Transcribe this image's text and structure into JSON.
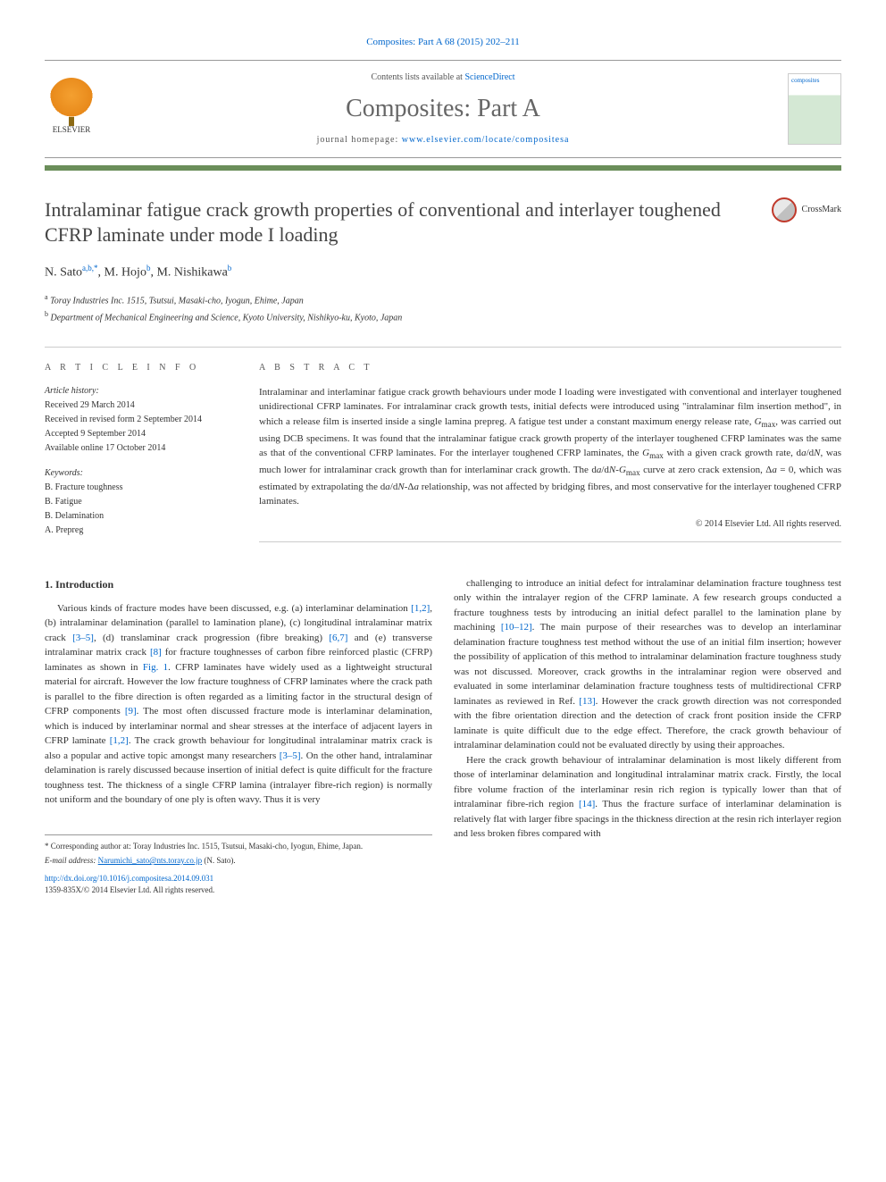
{
  "journal_ref": "Composites: Part A 68 (2015) 202–211",
  "header": {
    "elsevier_label": "ELSEVIER",
    "contents_prefix": "Contents lists available at ",
    "contents_link": "ScienceDirect",
    "journal_title": "Composites: Part A",
    "homepage_prefix": "journal homepage: ",
    "homepage_url": "www.elsevier.com/locate/compositesa",
    "cover_text": "composites"
  },
  "color_bar": "#6b8e5a",
  "article": {
    "title": "Intralaminar fatigue crack growth properties of conventional and interlayer toughened CFRP laminate under mode I loading",
    "crossmark_label": "CrossMark",
    "authors_html": "N. Sato",
    "author_sup1": "a,b,",
    "author_star": "*",
    "author2": ", M. Hojo",
    "author_sup2": "b",
    "author3": ", M. Nishikawa",
    "author_sup3": "b",
    "affiliations": [
      {
        "sup": "a",
        "text": "Toray Industries Inc. 1515, Tsutsui, Masaki-cho, Iyogun, Ehime, Japan"
      },
      {
        "sup": "b",
        "text": "Department of Mechanical Engineering and Science, Kyoto University, Nishikyo-ku, Kyoto, Japan"
      }
    ]
  },
  "info": {
    "heading": "A R T I C L E   I N F O",
    "history_label": "Article history:",
    "history": [
      "Received 29 March 2014",
      "Received in revised form 2 September 2014",
      "Accepted 9 September 2014",
      "Available online 17 October 2014"
    ],
    "keywords_label": "Keywords:",
    "keywords": [
      "B. Fracture toughness",
      "B. Fatigue",
      "B. Delamination",
      "A. Prepreg"
    ]
  },
  "abstract": {
    "heading": "A B S T R A C T",
    "text": "Intralaminar and interlaminar fatigue crack growth behaviours under mode I loading were investigated with conventional and interlayer toughened unidirectional CFRP laminates. For intralaminar crack growth tests, initial defects were introduced using \"intralaminar film insertion method\", in which a release film is inserted inside a single lamina prepreg. A fatigue test under a constant maximum energy release rate, Gmax, was carried out using DCB specimens. It was found that the intralaminar fatigue crack growth property of the interlayer toughened CFRP laminates was the same as that of the conventional CFRP laminates. For the interlayer toughened CFRP laminates, the Gmax with a given crack growth rate, da/dN, was much lower for intralaminar crack growth than for interlaminar crack growth. The da/dN-Gmax curve at zero crack extension, Δa = 0, which was estimated by extrapolating the da/dN-Δa relationship, was not affected by bridging fibres, and most conservative for the interlayer toughened CFRP laminates.",
    "copyright": "© 2014 Elsevier Ltd. All rights reserved."
  },
  "body": {
    "section_heading": "1. Introduction",
    "col1_p1": "Various kinds of fracture modes have been discussed, e.g. (a) interlaminar delamination [1,2], (b) intralaminar delamination (parallel to lamination plane), (c) longitudinal intralaminar matrix crack [3–5], (d) translaminar crack progression (fibre breaking) [6,7] and (e) transverse intralaminar matrix crack [8] for fracture toughnesses of carbon fibre reinforced plastic (CFRP) laminates as shown in Fig. 1. CFRP laminates have widely used as a lightweight structural material for aircraft. However the low fracture toughness of CFRP laminates where the crack path is parallel to the fibre direction is often regarded as a limiting factor in the structural design of CFRP components [9]. The most often discussed fracture mode is interlaminar delamination, which is induced by interlaminar normal and shear stresses at the interface of adjacent layers in CFRP laminate [1,2]. The crack growth behaviour for longitudinal intralaminar matrix crack is also a popular and active topic amongst many researchers [3–5]. On the other hand, intralaminar delamination is rarely discussed because insertion of initial defect is quite difficult for the fracture toughness test. The thickness of a single CFRP lamina (intralayer fibre-rich region) is normally not uniform and the boundary of one ply is often wavy. Thus it is very",
    "col2_p1": "challenging to introduce an initial defect for intralaminar delamination fracture toughness test only within the intralayer region of the CFRP laminate. A few research groups conducted a fracture toughness tests by introducing an initial defect parallel to the lamination plane by machining [10–12]. The main purpose of their researches was to develop an interlaminar delamination fracture toughness test method without the use of an initial film insertion; however the possibility of application of this method to intralaminar delamination fracture toughness study was not discussed. Moreover, crack growths in the intralaminar region were observed and evaluated in some interlaminar delamination fracture toughness tests of multidirectional CFRP laminates as reviewed in Ref. [13]. However the crack growth direction was not corresponded with the fibre orientation direction and the detection of crack front position inside the CFRP laminate is quite difficult due to the edge effect. Therefore, the crack growth behaviour of intralaminar delamination could not be evaluated directly by using their approaches.",
    "col2_p2": "Here the crack growth behaviour of intralaminar delamination is most likely different from those of interlaminar delamination and longitudinal intralaminar matrix crack. Firstly, the local fibre volume fraction of the interlaminar resin rich region is typically lower than that of intralaminar fibre-rich region [14]. Thus the fracture surface of interlaminar delamination is relatively flat with larger fibre spacings in the thickness direction at the resin rich interlayer region and less broken fibres compared with"
  },
  "footnotes": {
    "corr_star": "*",
    "corr_text": " Corresponding author at: Toray Industries Inc. 1515, Tsutsui, Masaki-cho, Iyogun, Ehime, Japan.",
    "email_label": "E-mail address: ",
    "email": "Narumichi_sato@nts.toray.co.jp",
    "email_suffix": " (N. Sato).",
    "doi": "http://dx.doi.org/10.1016/j.compositesa.2014.09.031",
    "issn_rights": "1359-835X/© 2014 Elsevier Ltd. All rights reserved."
  },
  "refs_in_text": [
    "[1,2]",
    "[3–5]",
    "[6,7]",
    "[8]",
    "Fig. 1",
    "[9]",
    "[1,2]",
    "[3–5]",
    "[10–12]",
    "[13]",
    "[14]"
  ],
  "colors": {
    "link": "#0066cc",
    "bar": "#6b8e5a",
    "elsevier_orange": "#e8891a",
    "text": "#333333",
    "border": "#999999"
  },
  "typography": {
    "body_fontsize": 11,
    "title_fontsize": 22,
    "journal_title_fontsize": 28,
    "info_fontsize": 10,
    "footnote_fontsize": 9
  }
}
